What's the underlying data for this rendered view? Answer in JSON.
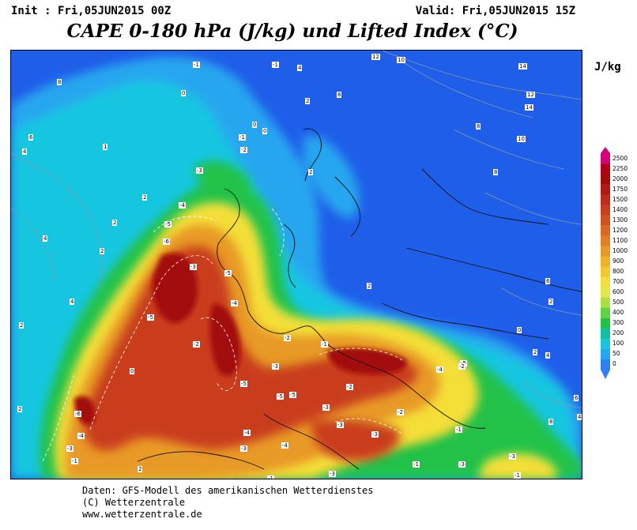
{
  "header": {
    "init": "Init : Fri,05JUN2015 00Z",
    "valid": "Valid: Fri,05JUN2015 15Z",
    "title": "CAPE 0-180 hPa (J/kg) und Lifted Index (°C)"
  },
  "legend": {
    "unit": "J/kg",
    "levels": [
      "2500",
      "2250",
      "2000",
      "1750",
      "1500",
      "1400",
      "1300",
      "1200",
      "1100",
      "1000",
      "900",
      "800",
      "700",
      "600",
      "500",
      "400",
      "300",
      "200",
      "100",
      "50",
      "0"
    ],
    "colors": [
      "#d60077",
      "#b00016",
      "#a30a0a",
      "#b01a14",
      "#bf2a1a",
      "#c93e1e",
      "#d15221",
      "#d86a24",
      "#df8226",
      "#e89a28",
      "#efb22a",
      "#f2c830",
      "#f4de38",
      "#e2e84a",
      "#a9e046",
      "#61d246",
      "#22c24a",
      "#11c0a4",
      "#18c6e0",
      "#27a6ef",
      "#2f7ff2"
    ]
  },
  "map": {
    "layer_colors": {
      "ocean_base": "#1f5ee9",
      "cape_low": "#18c6e0",
      "cape_green": "#22c24a",
      "cape_yellow": "#f4de38",
      "cape_orange": "#e89a28",
      "cape_red": "#c93e1e",
      "cape_dark": "#a30a0a"
    },
    "lifted_index_labels": [
      "-1",
      "-1",
      "0",
      "0",
      "-1",
      "-2",
      "-3",
      "-4",
      "-5",
      "-6",
      "-5",
      "-4",
      "-3",
      "-2",
      "-5",
      "-6",
      "-4",
      "-3",
      "-5",
      "-4",
      "-3",
      "-2",
      "-1",
      "-3",
      "-4",
      "-5",
      "-3",
      "-2",
      "-1",
      "-1",
      "-3",
      "-5",
      "-3",
      "-4",
      "-5",
      "-3",
      "-1",
      "-2",
      "-3",
      "-1",
      "-3",
      "-2",
      "-1",
      "0",
      "1",
      "2",
      "2",
      "2",
      "0",
      "4",
      "8",
      "8",
      "10",
      "12",
      "14",
      "14",
      "10",
      "12",
      "8",
      "6",
      "4",
      "2",
      "2",
      "4",
      "2",
      "2",
      "4",
      "2",
      "8",
      "6",
      "4",
      "2",
      "8",
      "6",
      "4",
      "2",
      "2",
      "0"
    ]
  },
  "footer": {
    "line1": "Daten: GFS-Modell des amerikanischen Wetterdienstes",
    "line2": "(C) Wetterzentrale",
    "line3": "www.wetterzentrale.de"
  }
}
